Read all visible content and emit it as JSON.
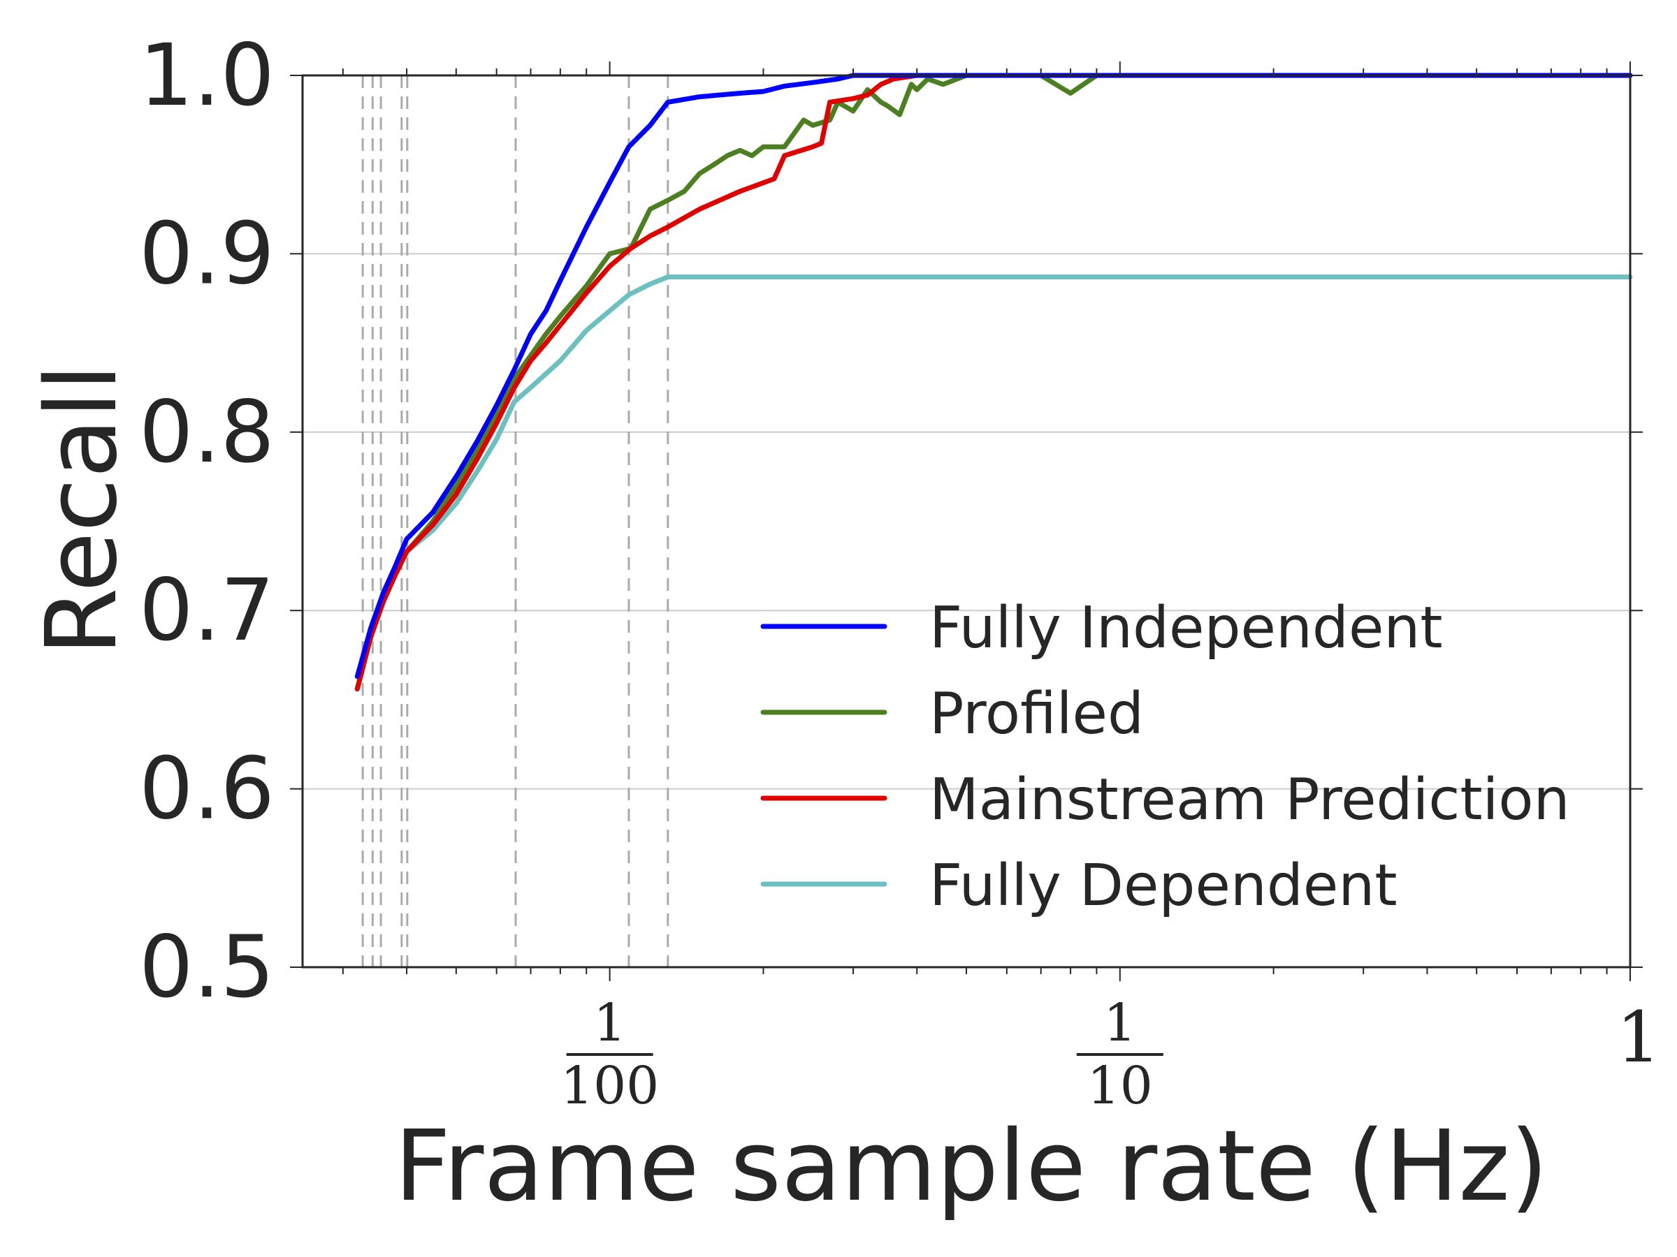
{
  "chart_data": {
    "type": "line",
    "title": "",
    "xlabel": "Frame sample rate (Hz)",
    "ylabel": "Recall",
    "xscale": "log",
    "xlim": [
      0.0025,
      1
    ],
    "ylim": [
      0.5,
      1.0
    ],
    "yticks": [
      "0.5",
      "0.6",
      "0.7",
      "0.8",
      "0.9",
      "1.0"
    ],
    "xticks": [
      {
        "value": 0.01,
        "numerator": "1",
        "denominator": "100"
      },
      {
        "value": 0.1,
        "numerator": "1",
        "denominator": "10"
      },
      {
        "value": 1,
        "label": "1"
      }
    ],
    "grid": "horizontal",
    "legend_position": "lower-right",
    "reference_lines_x": [
      0.00328,
      0.00343,
      0.00356,
      0.00391,
      0.00401,
      0.00654,
      0.0109,
      0.013
    ],
    "series": [
      {
        "name": "Fully Independent",
        "color": "#0000ff",
        "x": [
          0.0032,
          0.0034,
          0.0036,
          0.0038,
          0.004,
          0.0045,
          0.005,
          0.0055,
          0.006,
          0.0065,
          0.007,
          0.0075,
          0.008,
          0.009,
          0.01,
          0.0109,
          0.012,
          0.013,
          0.015,
          0.018,
          0.02,
          0.022,
          0.025,
          0.028,
          0.03,
          0.05,
          0.1,
          0.2,
          0.5,
          1
        ],
        "y": [
          0.663,
          0.69,
          0.71,
          0.725,
          0.74,
          0.755,
          0.775,
          0.795,
          0.815,
          0.835,
          0.855,
          0.868,
          0.885,
          0.915,
          0.94,
          0.96,
          0.972,
          0.985,
          0.988,
          0.99,
          0.991,
          0.994,
          0.996,
          0.998,
          1.0,
          1.0,
          1.0,
          1.0,
          1.0,
          1.0
        ]
      },
      {
        "name": "Profiled",
        "color": "#4c7f1f",
        "x": [
          0.0032,
          0.0034,
          0.0036,
          0.0038,
          0.004,
          0.0045,
          0.005,
          0.0055,
          0.006,
          0.0065,
          0.007,
          0.0075,
          0.008,
          0.009,
          0.01,
          0.011,
          0.012,
          0.013,
          0.014,
          0.015,
          0.016,
          0.017,
          0.018,
          0.019,
          0.02,
          0.021,
          0.022,
          0.024,
          0.025,
          0.027,
          0.028,
          0.03,
          0.032,
          0.034,
          0.035,
          0.037,
          0.039,
          0.04,
          0.042,
          0.045,
          0.05,
          0.055,
          0.06,
          0.07,
          0.08,
          0.09,
          0.1,
          0.2,
          0.5,
          1
        ],
        "y": [
          0.656,
          0.685,
          0.705,
          0.72,
          0.733,
          0.75,
          0.77,
          0.79,
          0.81,
          0.83,
          0.843,
          0.855,
          0.865,
          0.882,
          0.9,
          0.903,
          0.925,
          0.93,
          0.935,
          0.945,
          0.95,
          0.955,
          0.958,
          0.955,
          0.96,
          0.96,
          0.96,
          0.975,
          0.972,
          0.975,
          0.985,
          0.98,
          0.992,
          0.985,
          0.983,
          0.978,
          0.995,
          0.992,
          0.998,
          0.995,
          1.0,
          1.0,
          1.0,
          1.0,
          0.99,
          1.0,
          1.0,
          1.0,
          1.0,
          1.0
        ]
      },
      {
        "name": "Mainstream Prediction",
        "color": "#e00000",
        "x": [
          0.0032,
          0.0034,
          0.0036,
          0.0038,
          0.004,
          0.0045,
          0.005,
          0.0055,
          0.006,
          0.0065,
          0.007,
          0.0075,
          0.008,
          0.009,
          0.01,
          0.011,
          0.012,
          0.013,
          0.015,
          0.018,
          0.021,
          0.022,
          0.025,
          0.026,
          0.027,
          0.03,
          0.032,
          0.034,
          0.036,
          0.04,
          0.05,
          0.1,
          0.2,
          0.5,
          1
        ],
        "y": [
          0.656,
          0.685,
          0.705,
          0.72,
          0.733,
          0.748,
          0.765,
          0.785,
          0.805,
          0.825,
          0.84,
          0.85,
          0.86,
          0.878,
          0.893,
          0.903,
          0.91,
          0.915,
          0.925,
          0.935,
          0.942,
          0.955,
          0.96,
          0.962,
          0.985,
          0.987,
          0.989,
          0.995,
          0.998,
          1.0,
          1.0,
          1.0,
          1.0,
          1.0,
          1.0
        ]
      },
      {
        "name": "Fully Dependent",
        "color": "#6cc0c0",
        "x": [
          0.0032,
          0.0034,
          0.0036,
          0.0038,
          0.004,
          0.0045,
          0.005,
          0.0055,
          0.006,
          0.0065,
          0.007,
          0.008,
          0.009,
          0.01,
          0.0109,
          0.012,
          0.013,
          0.02,
          0.05,
          0.1,
          0.5,
          1
        ],
        "y": [
          0.656,
          0.685,
          0.705,
          0.72,
          0.733,
          0.745,
          0.76,
          0.778,
          0.796,
          0.817,
          0.825,
          0.84,
          0.857,
          0.868,
          0.877,
          0.883,
          0.887,
          0.887,
          0.887,
          0.887,
          0.887,
          0.887
        ]
      }
    ]
  }
}
